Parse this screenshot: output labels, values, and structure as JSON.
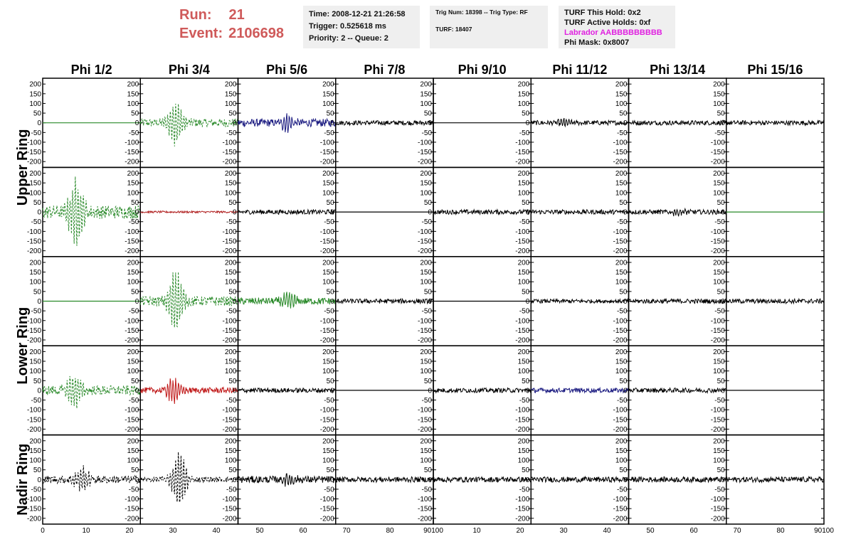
{
  "header": {
    "run_label": "Run:",
    "run_value": "21",
    "event_label": "Event:",
    "event_value": "2106698",
    "time": "Time: 2008-12-21 21:26:58",
    "trigger": "Trigger: 0.525618 ms",
    "priority": "Priority: 2 -- Queue: 2",
    "trig_num": "Trig Num: 18398 -- Trig Type: RF",
    "turf": "TURF: 18407",
    "turf_this_hold": "TURF This Hold: 0x2",
    "turf_active_holds": "TURF Active Holds: 0xf",
    "labrador": "Labrador AABBBBBBBBB",
    "phi_mask": "Phi Mask: 0x8007"
  },
  "chart_data": {
    "type": "line",
    "columns": [
      "Phi 1/2",
      "Phi 3/4",
      "Phi 5/6",
      "Phi 7/8",
      "Phi 9/10",
      "Phi 11/12",
      "Phi 13/14",
      "Phi 15/16"
    ],
    "row_groups": [
      {
        "label": "Upper Ring",
        "rows": [
          0,
          1
        ]
      },
      {
        "label": "Lower Ring",
        "rows": [
          2,
          3
        ]
      },
      {
        "label": "Nadir Ring",
        "rows": [
          4
        ]
      }
    ],
    "ylim": [
      -230,
      230
    ],
    "yticks": [
      200,
      150,
      100,
      50,
      0,
      -50,
      -100,
      -150,
      -200
    ],
    "xlim": [
      0,
      100
    ],
    "xticks": [
      0,
      10,
      20,
      30,
      40,
      50,
      60,
      70,
      80,
      90
    ],
    "xtick_labels": [
      "0",
      "10",
      "20",
      "30",
      "40",
      "50",
      "60",
      "70",
      "80",
      "90100",
      "10",
      "20",
      "30",
      "40",
      "50",
      "60",
      "70",
      "80",
      "90100"
    ],
    "panels": [
      [
        {
          "style": "flat",
          "color": "#2a8a2a",
          "amp": 0,
          "peak_x": 0,
          "peak_amp": 0
        },
        {
          "style": "dashed",
          "color": "#2a8a2a",
          "amp": 22,
          "peak_x": 36,
          "peak_amp": 110
        },
        {
          "style": "solid",
          "color": "#1a1a80",
          "amp": 20,
          "peak_x": 50,
          "peak_amp": 35
        },
        {
          "style": "solid",
          "color": "#000000",
          "amp": 12,
          "peak_x": 0,
          "peak_amp": 0
        },
        {
          "style": "flat",
          "color": "#000000",
          "amp": 0,
          "peak_x": 0,
          "peak_amp": 0
        },
        {
          "style": "solid",
          "color": "#000000",
          "amp": 12,
          "peak_x": 36,
          "peak_amp": 25
        },
        {
          "style": "solid",
          "color": "#000000",
          "amp": 12,
          "peak_x": 0,
          "peak_amp": 0
        },
        {
          "style": "solid",
          "color": "#000000",
          "amp": 12,
          "peak_x": 0,
          "peak_amp": 0
        }
      ],
      [
        {
          "style": "dashed",
          "color": "#2a8a2a",
          "amp": 35,
          "peak_x": 34,
          "peak_amp": 160
        },
        {
          "style": "solid",
          "color": "#b02020",
          "amp": 5,
          "peak_x": 0,
          "peak_amp": 0
        },
        {
          "style": "solid",
          "color": "#000000",
          "amp": 12,
          "peak_x": 0,
          "peak_amp": 0
        },
        {
          "style": "flat",
          "color": "#000000",
          "amp": 0,
          "peak_x": 0,
          "peak_amp": 0
        },
        {
          "style": "solid",
          "color": "#000000",
          "amp": 12,
          "peak_x": 0,
          "peak_amp": 0
        },
        {
          "style": "solid",
          "color": "#000000",
          "amp": 12,
          "peak_x": 0,
          "peak_amp": 0
        },
        {
          "style": "solid",
          "color": "#000000",
          "amp": 12,
          "peak_x": 50,
          "peak_amp": 20
        },
        {
          "style": "flat",
          "color": "#2a8a2a",
          "amp": 0,
          "peak_x": 0,
          "peak_amp": 0
        }
      ],
      [
        {
          "style": "flat",
          "color": "#2a8a2a",
          "amp": 0,
          "peak_x": 0,
          "peak_amp": 0
        },
        {
          "style": "dashed",
          "color": "#2a8a2a",
          "amp": 25,
          "peak_x": 36,
          "peak_amp": 150
        },
        {
          "style": "solid",
          "color": "#2a8a2a",
          "amp": 18,
          "peak_x": 52,
          "peak_amp": 40
        },
        {
          "style": "solid",
          "color": "#000000",
          "amp": 12,
          "peak_x": 0,
          "peak_amp": 0
        },
        {
          "style": "flat",
          "color": "#000000",
          "amp": 0,
          "peak_x": 0,
          "peak_amp": 0
        },
        {
          "style": "solid",
          "color": "#000000",
          "amp": 10,
          "peak_x": 0,
          "peak_amp": 0
        },
        {
          "style": "solid",
          "color": "#000000",
          "amp": 12,
          "peak_x": 0,
          "peak_amp": 0
        },
        {
          "style": "solid",
          "color": "#000000",
          "amp": 12,
          "peak_x": 0,
          "peak_amp": 0
        }
      ],
      [
        {
          "style": "dashed",
          "color": "#2a8a2a",
          "amp": 25,
          "peak_x": 32,
          "peak_amp": 90
        },
        {
          "style": "solid",
          "color": "#c01818",
          "amp": 15,
          "peak_x": 34,
          "peak_amp": 65
        },
        {
          "style": "solid",
          "color": "#000000",
          "amp": 12,
          "peak_x": 0,
          "peak_amp": 0
        },
        {
          "style": "flat",
          "color": "#000000",
          "amp": 0,
          "peak_x": 0,
          "peak_amp": 0
        },
        {
          "style": "solid",
          "color": "#000000",
          "amp": 12,
          "peak_x": 0,
          "peak_amp": 0
        },
        {
          "style": "solid",
          "color": "#1a1a80",
          "amp": 12,
          "peak_x": 0,
          "peak_amp": 0
        },
        {
          "style": "solid",
          "color": "#000000",
          "amp": 12,
          "peak_x": 0,
          "peak_amp": 0
        },
        {
          "style": "flat",
          "color": "#000000",
          "amp": 0,
          "peak_x": 0,
          "peak_amp": 0
        }
      ],
      [
        {
          "style": "dashed",
          "color": "#000000",
          "amp": 20,
          "peak_x": 40,
          "peak_amp": 60
        },
        {
          "style": "dashed",
          "color": "#000000",
          "amp": 14,
          "peak_x": 40,
          "peak_amp": 140
        },
        {
          "style": "solid",
          "color": "#000000",
          "amp": 18,
          "peak_x": 52,
          "peak_amp": 25
        },
        {
          "style": "solid",
          "color": "#000000",
          "amp": 14,
          "peak_x": 0,
          "peak_amp": 0
        },
        {
          "style": "solid",
          "color": "#000000",
          "amp": 14,
          "peak_x": 0,
          "peak_amp": 0
        },
        {
          "style": "solid",
          "color": "#000000",
          "amp": 14,
          "peak_x": 0,
          "peak_amp": 0
        },
        {
          "style": "solid",
          "color": "#000000",
          "amp": 14,
          "peak_x": 0,
          "peak_amp": 0
        },
        {
          "style": "solid",
          "color": "#000000",
          "amp": 14,
          "peak_x": 0,
          "peak_amp": 0
        }
      ]
    ]
  }
}
